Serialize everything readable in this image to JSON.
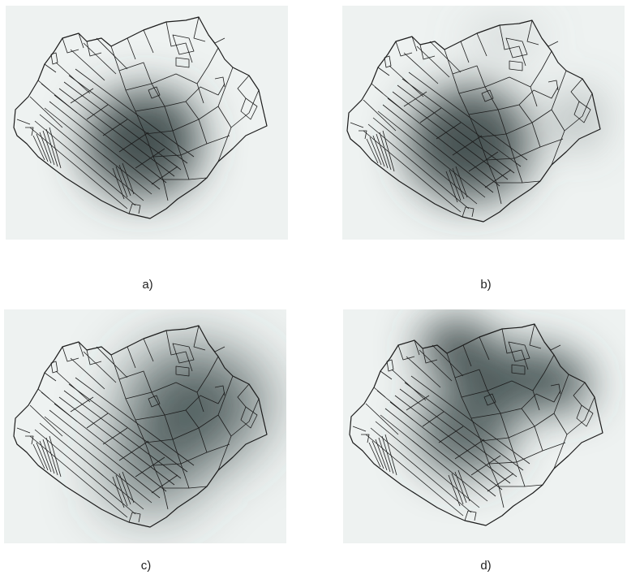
{
  "colors": {
    "background": "#eef2f1",
    "hotspot": "#3f4c4c",
    "parcel_line": "#1c1c1c"
  },
  "panels": [
    {
      "id": "a",
      "caption": "a)"
    },
    {
      "id": "b",
      "caption": "b)"
    },
    {
      "id": "c",
      "caption": "c)"
    },
    {
      "id": "d",
      "caption": "d)"
    }
  ]
}
